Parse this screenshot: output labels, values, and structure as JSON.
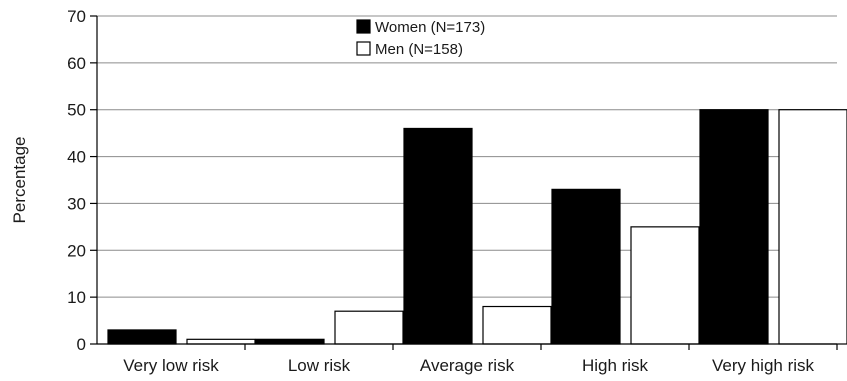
{
  "chart_data": {
    "type": "bar",
    "title": "",
    "xlabel": "",
    "ylabel": "Percentage",
    "ylim": [
      0,
      70
    ],
    "yticks": [
      0,
      10,
      20,
      30,
      40,
      50,
      60,
      70
    ],
    "grid": true,
    "legend_position": "top-center",
    "categories": [
      "Very low risk",
      "Low risk",
      "Average risk",
      "High risk",
      "Very high risk"
    ],
    "series": [
      {
        "name": "Women (N=173)",
        "values": [
          3,
          1,
          46,
          33,
          50
        ],
        "color": "#000000"
      },
      {
        "name": "Men (N=158)",
        "values": [
          1,
          7,
          8,
          25,
          50
        ],
        "color": "#ffffff"
      }
    ]
  }
}
